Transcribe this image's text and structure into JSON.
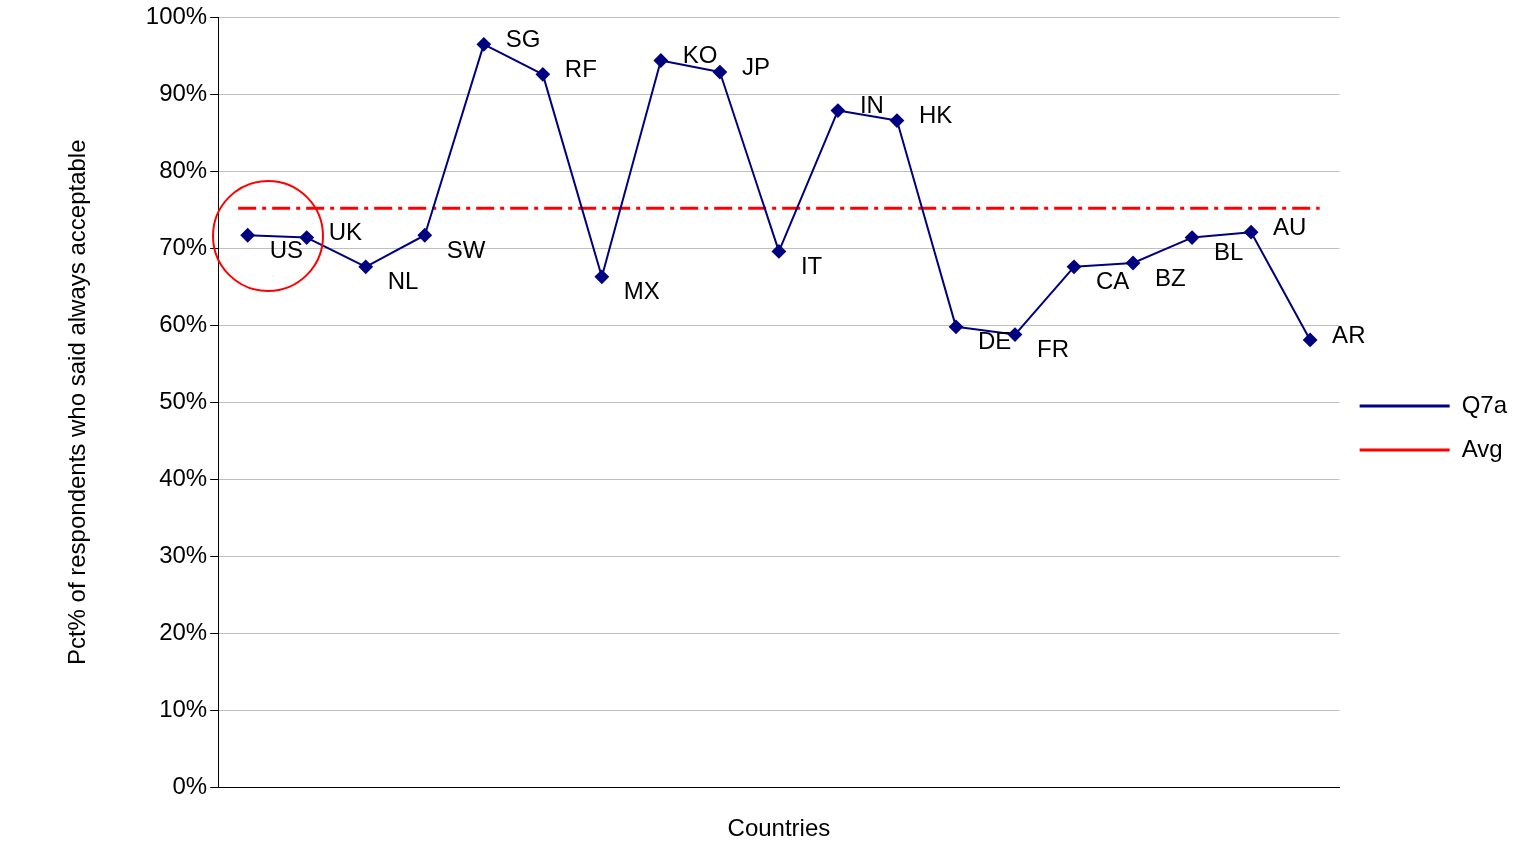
{
  "chart_data": {
    "type": "line",
    "xlabel": "Countries",
    "ylabel": "Pct% of respondents who said always acceptable",
    "categories": [
      null,
      null,
      null,
      null,
      null,
      null,
      null,
      null,
      null,
      null,
      null,
      null,
      null,
      null,
      null,
      null,
      null,
      null,
      null
    ],
    "series": [
      {
        "name": "Q7a",
        "color": "#000080",
        "values": [
          71.7,
          71.4,
          67.6,
          71.7,
          96.5,
          92.6,
          66.3,
          94.4,
          92.9,
          69.6,
          87.9,
          86.6,
          59.8,
          58.8,
          67.6,
          68.1,
          71.4,
          72.1,
          58.1
        ],
        "value_labels": [
          "US",
          "UK",
          "NL",
          "SW",
          "SG",
          "RF",
          "MX",
          "KO",
          "JP",
          "IT",
          "IN",
          "HK",
          "DE",
          "FR",
          "CA",
          "BZ",
          "BL",
          "AU",
          "AR"
        ]
      }
    ],
    "ref_lines": [
      {
        "axis": "y",
        "value": 75.2,
        "label": "Avg",
        "color": "#ff0000",
        "line_style": "dashed"
      }
    ],
    "ylim": [
      0,
      100
    ],
    "yticks": [
      {
        "value": 0,
        "label": "0%"
      },
      {
        "value": 10,
        "label": "10%"
      },
      {
        "value": 20,
        "label": "20%"
      },
      {
        "value": 30,
        "label": "30%"
      },
      {
        "value": 40,
        "label": "40%"
      },
      {
        "value": 50,
        "label": "50%"
      },
      {
        "value": 60,
        "label": "60%"
      },
      {
        "value": 70,
        "label": "70%"
      },
      {
        "value": 80,
        "label": "80%"
      },
      {
        "value": 90,
        "label": "90%"
      },
      {
        "value": 100,
        "label": "100%"
      }
    ],
    "grid": "y",
    "legend": "right",
    "marker": "diamond",
    "tick_labels": "y"
  }
}
